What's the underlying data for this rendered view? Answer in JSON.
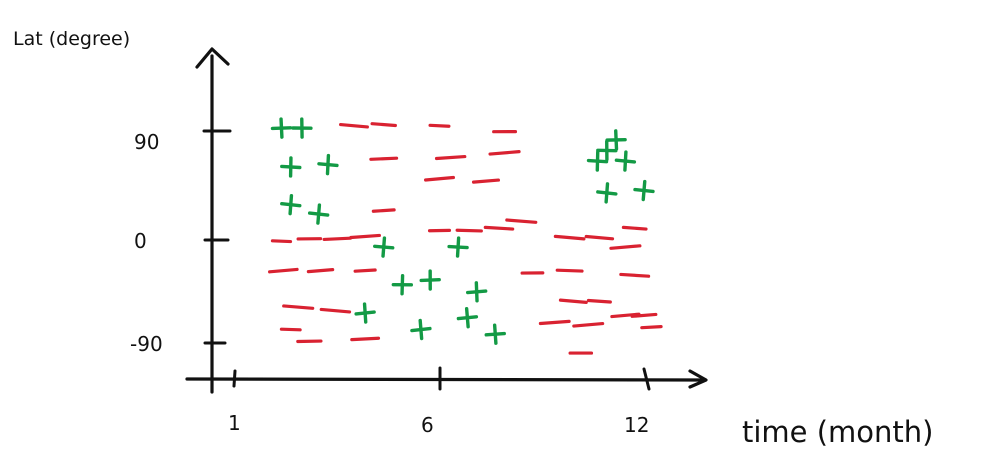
{
  "chart_data": {
    "type": "scatter",
    "title": "",
    "ylabel": "Lat (degree)",
    "xlabel": "time (month)",
    "x_ticks": [
      "1",
      "6",
      "12"
    ],
    "y_ticks": [
      "90",
      "0",
      "-90"
    ],
    "xlim": [
      0.5,
      13.5
    ],
    "ylim": [
      -125,
      195
    ],
    "colors": {
      "plus": "#139a45",
      "minus": "#d92231",
      "axis": "#111111"
    },
    "series": [
      {
        "symbol": "+",
        "points": [
          [
            2.25,
            95
          ],
          [
            2.8,
            95
          ],
          [
            2.5,
            62
          ],
          [
            3.5,
            64
          ],
          [
            2.5,
            30
          ],
          [
            3.25,
            22
          ],
          [
            5.0,
            -6
          ],
          [
            7.0,
            -6
          ],
          [
            5.5,
            -38
          ],
          [
            6.25,
            -34
          ],
          [
            7.5,
            -44
          ],
          [
            4.5,
            -62
          ],
          [
            6.0,
            -76
          ],
          [
            7.25,
            -66
          ],
          [
            8.0,
            -80
          ],
          [
            11.25,
            85
          ],
          [
            11.0,
            76
          ],
          [
            10.75,
            67
          ],
          [
            11.5,
            67
          ],
          [
            11.0,
            40
          ],
          [
            12.0,
            42
          ]
        ]
      },
      {
        "symbol": "-",
        "points": [
          [
            4.2,
            97
          ],
          [
            5.0,
            98
          ],
          [
            6.5,
            97
          ],
          [
            8.25,
            92
          ],
          [
            5.0,
            69
          ],
          [
            6.8,
            70
          ],
          [
            8.25,
            74
          ],
          [
            6.5,
            52
          ],
          [
            7.75,
            50
          ],
          [
            5.0,
            25
          ],
          [
            6.5,
            8
          ],
          [
            7.3,
            8
          ],
          [
            8.1,
            10
          ],
          [
            8.7,
            16
          ],
          [
            10.0,
            2
          ],
          [
            10.8,
            2
          ],
          [
            11.75,
            10
          ],
          [
            2.25,
            -1
          ],
          [
            3.0,
            1
          ],
          [
            3.75,
            1
          ],
          [
            4.5,
            3
          ],
          [
            11.5,
            -6
          ],
          [
            2.3,
            -26
          ],
          [
            3.3,
            -26
          ],
          [
            4.5,
            -26
          ],
          [
            9.0,
            -28
          ],
          [
            10.0,
            -26
          ],
          [
            11.75,
            -30
          ],
          [
            2.7,
            -57
          ],
          [
            3.7,
            -60
          ],
          [
            10.1,
            -52
          ],
          [
            10.8,
            -52
          ],
          [
            2.5,
            -76
          ],
          [
            3.0,
            -86
          ],
          [
            4.5,
            -84
          ],
          [
            9.6,
            -70
          ],
          [
            10.5,
            -72
          ],
          [
            11.5,
            -64
          ],
          [
            12.0,
            -64
          ],
          [
            12.2,
            -74
          ],
          [
            10.3,
            -96
          ]
        ]
      }
    ]
  }
}
